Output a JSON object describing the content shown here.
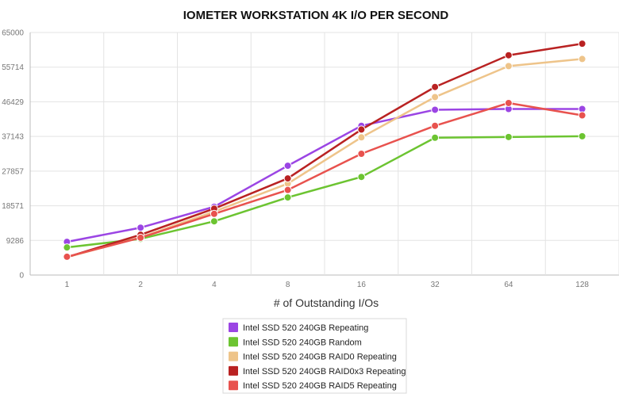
{
  "chart_data": {
    "type": "line",
    "title": "IOMETER WORKSTATION 4K I/O PER SECOND",
    "xlabel": "# of Outstanding I/Os",
    "ylabel": "",
    "categories": [
      "1",
      "2",
      "4",
      "8",
      "16",
      "32",
      "64",
      "128"
    ],
    "y_ticks": [
      "0",
      "9286",
      "18571",
      "27857",
      "37143",
      "46429",
      "55714",
      "65000"
    ],
    "ylim": [
      0,
      65000
    ],
    "grid": true,
    "legend_position": "bottom-center",
    "series": [
      {
        "name": "Intel SSD 520 240GB Repeating",
        "color": "#9b45e4",
        "values": [
          8900,
          12700,
          18300,
          29300,
          40000,
          44300,
          44500,
          44500
        ]
      },
      {
        "name": "Intel SSD 520 240GB Random",
        "color": "#6cc431",
        "values": [
          7400,
          9700,
          14400,
          20800,
          26300,
          36800,
          37000,
          37200
        ]
      },
      {
        "name": "Intel SSD 520 240GB RAID0 Repeating",
        "color": "#eec48a",
        "values": [
          4800,
          10100,
          17000,
          24500,
          36900,
          47700,
          56000,
          57900
        ]
      },
      {
        "name": "Intel SSD 520 240GB RAID0x3 Repeating",
        "color": "#b92222",
        "values": [
          4800,
          10800,
          17800,
          25900,
          39000,
          50400,
          58900,
          62000
        ]
      },
      {
        "name": "Intel SSD 520 240GB RAID5 Repeating",
        "color": "#e8524e",
        "values": [
          4900,
          10000,
          16400,
          22800,
          32500,
          40000,
          46100,
          42800
        ]
      }
    ]
  }
}
